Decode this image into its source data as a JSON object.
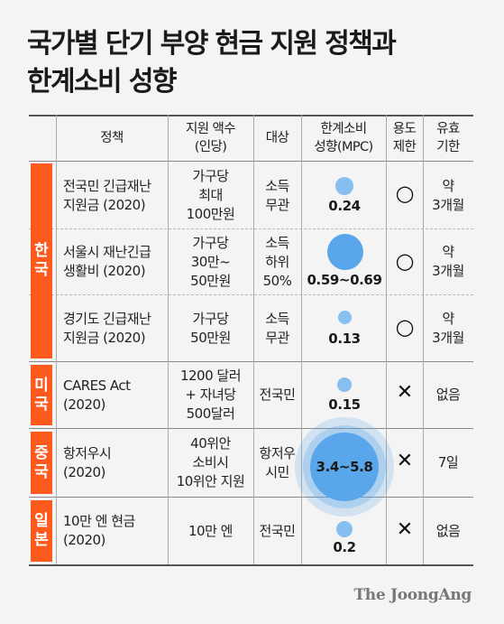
{
  "title": {
    "line1": "국가별 단기 부양 현금 지원 정책과",
    "line2": "한계소비 성향"
  },
  "headers": {
    "policy": "정책",
    "amount": "지원 액수\n(인당)",
    "target": "대상",
    "mpc": "한계소비\n성향(MPC)",
    "restriction": "용도\n제한",
    "validity": "유효\n기한"
  },
  "countries": {
    "korea": "한\n국",
    "us": "미\n국",
    "china": "중\n국",
    "japan": "일\n본"
  },
  "rows": [
    {
      "policy": "전국민 긴급재난\n지원금 (2020)",
      "amount": "가구당\n최대\n100만원",
      "target": "소득\n무관",
      "mpc": "0.24",
      "mpc_value": 0.24,
      "restriction": "○",
      "validity": "약\n3개월"
    },
    {
      "policy": "서울시 재난긴급\n생활비 (2020)",
      "amount": "가구당\n30만~\n50만원",
      "target": "소득\n하위\n50%",
      "mpc": "0.59~0.69",
      "mpc_value": 0.64,
      "restriction": "○",
      "validity": "약\n3개월"
    },
    {
      "policy": "경기도 긴급재난\n지원금 (2020)",
      "amount": "가구당\n50만원",
      "target": "소득\n무관",
      "mpc": "0.13",
      "mpc_value": 0.13,
      "restriction": "○",
      "validity": "약\n3개월"
    },
    {
      "policy": "CARES Act\n (2020)",
      "amount": "1200 달러\n+ 자녀당\n500달러",
      "target": "전국민",
      "mpc": "0.15",
      "mpc_value": 0.15,
      "restriction": "✕",
      "validity": "없음"
    },
    {
      "policy": "항저우시\n(2020)",
      "amount": "40위안\n소비시\n10위안 지원",
      "target": "항저우\n시민",
      "mpc": "3.4~5.8",
      "mpc_value": 4.6,
      "restriction": "✕",
      "validity": "7일"
    },
    {
      "policy": "10만 엔 현금\n(2020)",
      "amount": "10만 엔",
      "target": "전국민",
      "mpc": "0.2",
      "mpc_value": 0.2,
      "restriction": "✕",
      "validity": "없음"
    }
  ],
  "colors": {
    "accent": "#ff5a1e",
    "bubble": "#86bff0",
    "bubble_strong": "#5aa6ea"
  },
  "logo": "The JoongAng"
}
